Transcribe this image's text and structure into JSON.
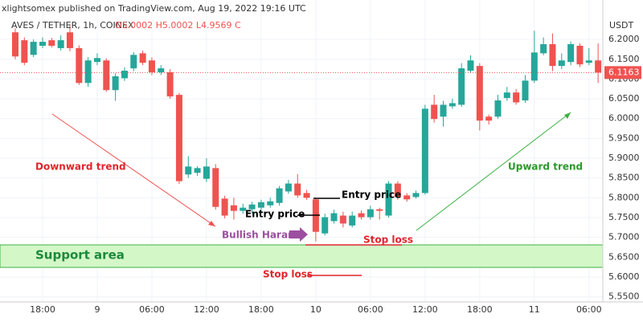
{
  "header": {
    "publisher": "xlightsomex published on TradingView.com, Aug 19, 2022 19:16 UTC",
    "symbol": "AVES / TETHER, 1h, COINEX",
    "ohlc": "O5.0002 H5.0002 L4.9569 C"
  },
  "annotations": {
    "downward": "Downward trend",
    "upward": "Upward trend",
    "entry_1": "Entry price",
    "entry_2": "Entry price",
    "harami": "Bullish Harami",
    "stop_1": "Stop loss",
    "stop_2": "Stop loss",
    "support": "Support area"
  },
  "chart_data": {
    "type": "candlestick",
    "y_unit": "USDT",
    "up_color": "#26a69a",
    "down_color": "#ef5350",
    "grid": true,
    "categories": [
      null,
      null,
      null,
      "18:00",
      null,
      null,
      null,
      null,
      null,
      "9",
      null,
      null,
      null,
      null,
      null,
      "06:00",
      null,
      null,
      null,
      null,
      null,
      "12:00",
      null,
      null,
      null,
      null,
      null,
      "18:00",
      null,
      null,
      null,
      null,
      null,
      "10",
      null,
      null,
      null,
      null,
      null,
      "06:00",
      null,
      null,
      null,
      null,
      null,
      "12:00",
      null,
      null,
      null,
      null,
      null,
      "18:00",
      null,
      null,
      null,
      null,
      null,
      "11",
      null,
      null,
      null,
      null,
      null,
      "06:00",
      null
    ],
    "open": [
      6.218,
      6.198,
      6.161,
      6.184,
      6.198,
      6.178,
      6.218,
      6.178,
      6.09,
      6.143,
      6.147,
      6.072,
      6.102,
      6.127,
      6.165,
      6.147,
      6.117,
      6.117,
      6.06,
      5.859,
      5.863,
      5.848,
      5.875,
      5.798,
      5.781,
      5.767,
      5.771,
      5.775,
      5.781,
      5.787,
      5.816,
      5.836,
      5.812,
      5.796,
      5.71,
      5.741,
      5.755,
      5.73,
      5.761,
      5.751,
      5.771,
      5.755,
      5.836,
      5.806,
      5.802,
      5.812,
      6.035,
      6.005,
      6.031,
      6.035,
      6.121,
      6.133,
      6.005,
      6.005,
      6.052,
      6.066,
      6.046,
      6.096,
      6.165,
      6.188,
      6.133,
      6.143,
      6.184,
      6.141,
      6.147
    ],
    "high": [
      6.228,
      6.205,
      6.2,
      6.205,
      6.204,
      6.21,
      6.238,
      6.185,
      6.155,
      6.165,
      6.152,
      6.115,
      6.13,
      6.168,
      6.172,
      6.155,
      6.135,
      6.125,
      6.065,
      5.905,
      5.88,
      5.9,
      5.885,
      5.805,
      5.8,
      5.785,
      5.79,
      5.795,
      5.8,
      5.83,
      5.845,
      5.86,
      5.82,
      5.8,
      5.76,
      5.77,
      5.765,
      5.765,
      5.768,
      5.78,
      5.775,
      5.842,
      5.842,
      5.812,
      5.818,
      6.035,
      6.06,
      6.045,
      6.05,
      6.14,
      6.16,
      6.14,
      6.01,
      6.06,
      6.08,
      6.075,
      6.11,
      6.222,
      6.205,
      6.215,
      6.165,
      6.195,
      6.19,
      6.178,
      6.19
    ],
    "low": [
      6.15,
      6.135,
      6.155,
      6.178,
      6.18,
      6.172,
      6.17,
      6.085,
      6.08,
      6.135,
      6.068,
      6.045,
      6.095,
      6.12,
      6.135,
      6.11,
      6.11,
      6.05,
      5.835,
      5.85,
      5.855,
      5.84,
      5.77,
      5.748,
      5.745,
      5.76,
      5.76,
      5.765,
      5.775,
      5.78,
      5.81,
      5.8,
      5.795,
      5.69,
      5.705,
      5.735,
      5.725,
      5.725,
      5.745,
      5.745,
      5.745,
      5.75,
      5.795,
      5.79,
      5.798,
      5.808,
      5.99,
      5.98,
      6.025,
      6.03,
      6.115,
      5.97,
      5.985,
      6.0,
      6.045,
      6.035,
      6.04,
      6.09,
      6.16,
      6.12,
      6.125,
      6.135,
      6.13,
      6.135,
      6.09
    ],
    "close": [
      6.157,
      6.141,
      6.194,
      6.194,
      6.184,
      6.198,
      6.178,
      6.09,
      6.147,
      6.153,
      6.072,
      6.107,
      6.121,
      6.161,
      6.141,
      6.117,
      6.127,
      6.056,
      5.842,
      5.879,
      5.875,
      5.879,
      5.777,
      5.755,
      5.767,
      5.775,
      5.783,
      5.789,
      5.791,
      5.824,
      5.836,
      5.806,
      5.8,
      5.714,
      5.751,
      5.761,
      5.735,
      5.755,
      5.751,
      5.771,
      5.767,
      5.836,
      5.802,
      5.796,
      5.812,
      6.025,
      5.999,
      6.035,
      6.039,
      6.127,
      6.147,
      5.995,
      5.995,
      6.046,
      6.066,
      6.041,
      6.096,
      6.167,
      6.188,
      6.133,
      6.147,
      6.188,
      6.137,
      6.147,
      6.1163
    ],
    "ylim": [
      5.537,
      6.2996
    ],
    "yticks": [
      {
        "value": 5.55,
        "label": "5.5500"
      },
      {
        "value": 5.6,
        "label": "5.6000"
      },
      {
        "value": 5.65,
        "label": "5.6500"
      },
      {
        "value": 5.7,
        "label": "5.7000"
      },
      {
        "value": 5.75,
        "label": "5.7500"
      },
      {
        "value": 5.8,
        "label": "5.8000"
      },
      {
        "value": 5.85,
        "label": "5.8500"
      },
      {
        "value": 5.9,
        "label": "5.9000"
      },
      {
        "value": 5.95,
        "label": "5.9500"
      },
      {
        "value": 6.0,
        "label": "6.0000"
      },
      {
        "value": 6.05,
        "label": "6.0500"
      },
      {
        "value": 6.1,
        "label": "6.1000"
      },
      {
        "value": 6.15,
        "label": "6.1500"
      },
      {
        "value": 6.2,
        "label": "6.2000"
      }
    ]
  }
}
